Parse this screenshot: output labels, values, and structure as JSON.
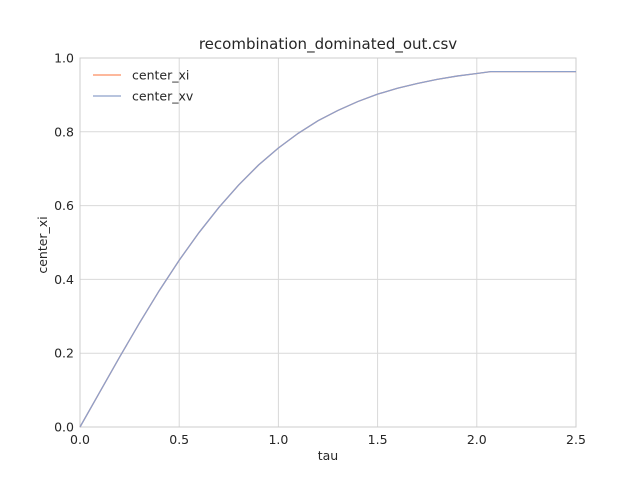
{
  "chart_data": {
    "type": "line",
    "title": "recombination_dominated_out.csv",
    "xlabel": "tau",
    "ylabel": "center_xi",
    "xlim": [
      0.0,
      2.5
    ],
    "ylim": [
      0.0,
      1.0
    ],
    "xticks": [
      "0.0",
      "0.5",
      "1.0",
      "1.5",
      "2.0",
      "2.5"
    ],
    "yticks": [
      "0.0",
      "0.2",
      "0.4",
      "0.6",
      "0.8",
      "1.0"
    ],
    "grid": true,
    "legend_position": "top-left",
    "x": [
      0.0,
      0.1,
      0.2,
      0.3,
      0.4,
      0.5,
      0.6,
      0.7,
      0.8,
      0.9,
      1.0,
      1.1,
      1.2,
      1.3,
      1.4,
      1.5,
      1.6,
      1.7,
      1.8,
      1.9,
      2.0,
      2.07,
      2.1,
      2.2,
      2.3,
      2.4,
      2.5
    ],
    "series": [
      {
        "name": "center_xi",
        "color": "#fc8d62",
        "values": [
          0.0,
          0.095,
          0.19,
          0.282,
          0.37,
          0.452,
          0.527,
          0.595,
          0.656,
          0.71,
          0.756,
          0.796,
          0.83,
          0.858,
          0.882,
          0.902,
          0.918,
          0.931,
          0.942,
          0.951,
          0.958,
          0.963,
          0.963,
          0.963,
          0.963,
          0.963,
          0.963
        ]
      },
      {
        "name": "center_xv",
        "color": "#8da0cb",
        "values": [
          0.0,
          0.095,
          0.19,
          0.282,
          0.37,
          0.452,
          0.527,
          0.595,
          0.656,
          0.71,
          0.756,
          0.796,
          0.83,
          0.858,
          0.882,
          0.902,
          0.918,
          0.931,
          0.942,
          0.951,
          0.958,
          0.963,
          0.963,
          0.963,
          0.963,
          0.963,
          0.963
        ]
      }
    ]
  }
}
